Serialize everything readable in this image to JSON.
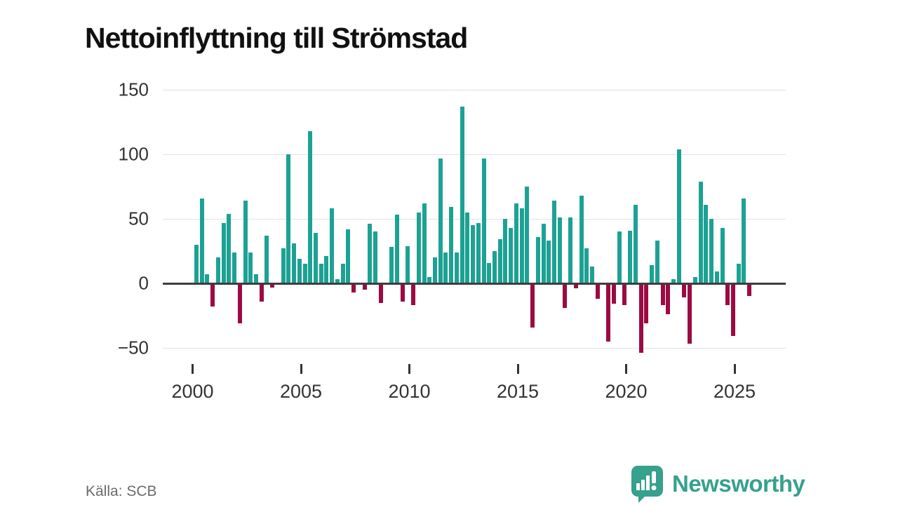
{
  "title": "Nettoinflyttning till Strömstad",
  "source": "Källa: SCB",
  "logo": {
    "text": "Newsworthy",
    "color": "#36A18D"
  },
  "colors": {
    "positive_bar": "#1CA294",
    "negative_bar": "#9D0A43",
    "zero_axis": "#3d3d3d",
    "gridline": "#e2e2e2",
    "title_text": "#111111",
    "axis_label": "#333333",
    "source_text": "#6b6b6b"
  },
  "chart_data": {
    "type": "bar",
    "title": "Nettoinflyttning till Strömstad",
    "xlabel": "",
    "ylabel": "",
    "x_frequency": "quarterly",
    "x_range": "2000 Q1 – 2025 Q3",
    "ylim": [
      -62,
      160
    ],
    "grid": "horizontal",
    "legend": "none",
    "yticks": [
      {
        "v": 150,
        "label": "150"
      },
      {
        "v": 100,
        "label": "100"
      },
      {
        "v": 50,
        "label": "50"
      },
      {
        "v": 0,
        "label": "0"
      },
      {
        "v": -50,
        "label": "−50"
      }
    ],
    "xticks": [
      {
        "v": 2000,
        "label": "2000"
      },
      {
        "v": 2005,
        "label": "2005"
      },
      {
        "v": 2010,
        "label": "2010"
      },
      {
        "v": 2015,
        "label": "2015"
      },
      {
        "v": 2020,
        "label": "2020"
      },
      {
        "v": 2025,
        "label": "2025"
      }
    ],
    "values_by_year": {
      "2000": [
        30,
        66,
        7,
        -18
      ],
      "2001": [
        20,
        47,
        54,
        24
      ],
      "2002": [
        -31,
        64,
        24,
        7
      ],
      "2003": [
        -14,
        37,
        -3,
        0
      ],
      "2004": [
        27,
        100,
        31,
        19
      ],
      "2005": [
        15,
        118,
        39,
        15
      ],
      "2006": [
        21,
        58,
        3,
        15
      ],
      "2007": [
        42,
        -7,
        0,
        -5
      ],
      "2008": [
        46,
        40,
        -15,
        0
      ],
      "2009": [
        28,
        53,
        -14,
        29
      ],
      "2010": [
        -17,
        55,
        62,
        5
      ],
      "2011": [
        20,
        97,
        24,
        59
      ],
      "2012": [
        24,
        137,
        55,
        45
      ],
      "2013": [
        47,
        97,
        16,
        25
      ],
      "2014": [
        34,
        50,
        43,
        62
      ],
      "2015": [
        58,
        75,
        -34,
        36
      ],
      "2016": [
        46,
        33,
        64,
        51
      ],
      "2017": [
        -19,
        51,
        -4,
        68
      ],
      "2018": [
        27,
        13,
        -12,
        0
      ],
      "2019": [
        -45,
        -16,
        40,
        -17
      ],
      "2020": [
        41,
        61,
        -54,
        -31
      ],
      "2021": [
        14,
        33,
        -17,
        -24
      ],
      "2022": [
        3,
        104,
        -11,
        -47
      ],
      "2023": [
        5,
        79,
        61,
        50
      ],
      "2024": [
        9,
        43,
        -17,
        -41
      ],
      "2025": [
        15,
        66,
        -10
      ]
    }
  }
}
